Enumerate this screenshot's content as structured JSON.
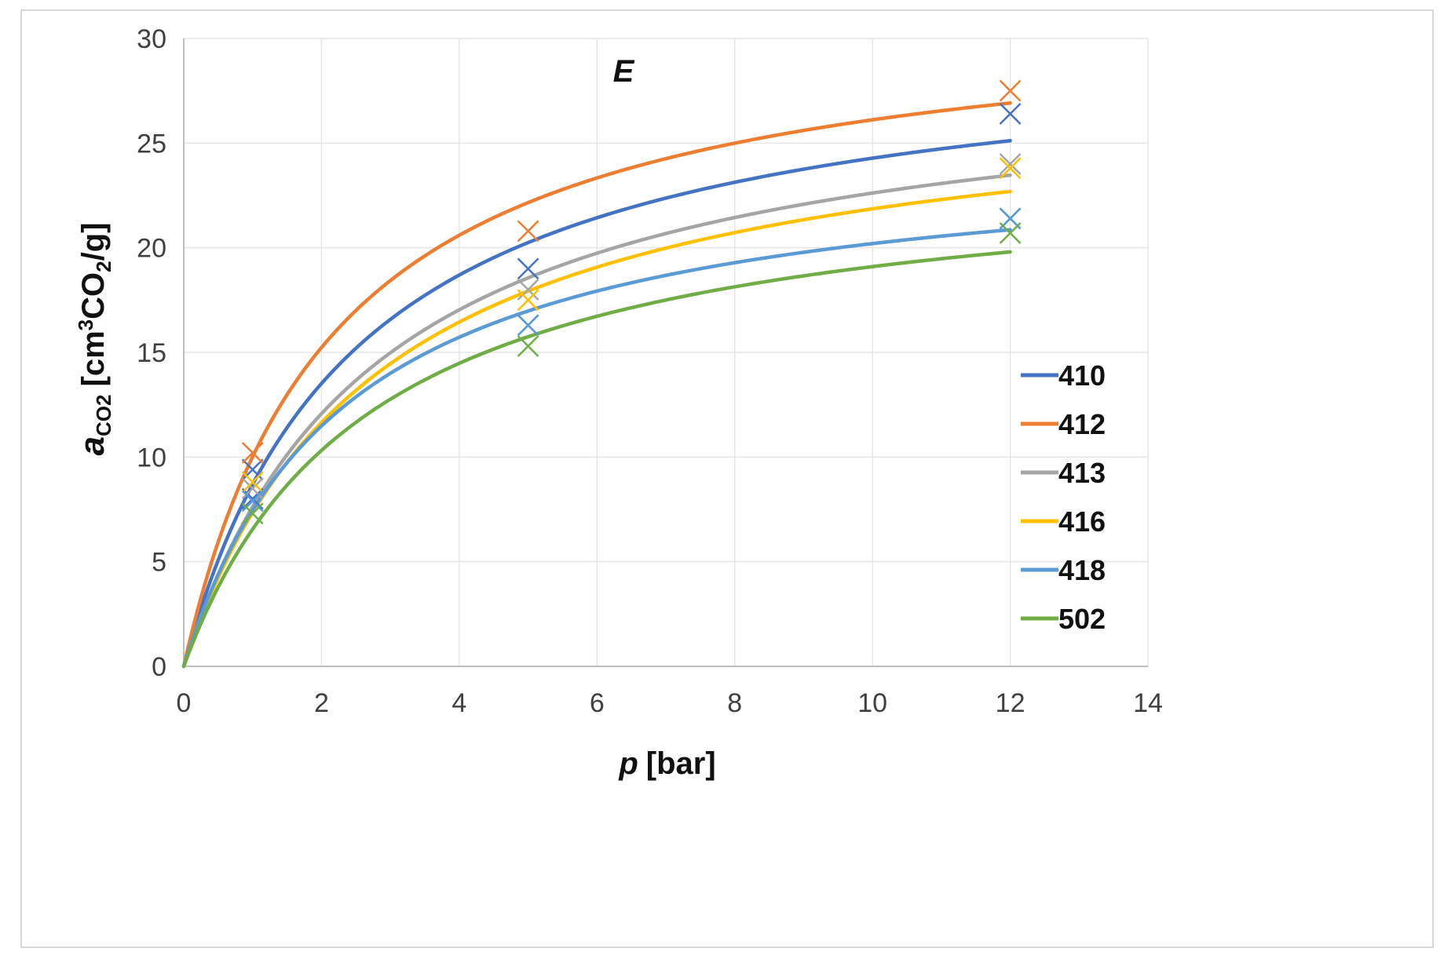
{
  "chart_data": {
    "type": "scatter",
    "panel_label": "E",
    "xlabel": {
      "var": "p",
      "unit": "[bar]"
    },
    "ylabel": {
      "var": "a",
      "sub": "CO2",
      "unit_open": "[cm",
      "sup": "3",
      "unit_mid": "CO",
      "sub2": "2",
      "unit_close": "/g]"
    },
    "xlim": [
      0,
      14
    ],
    "ylim": [
      0,
      30
    ],
    "xticks": [
      0,
      2,
      4,
      6,
      8,
      10,
      12,
      14
    ],
    "yticks": [
      0,
      5,
      10,
      15,
      20,
      25,
      30
    ],
    "grid": true,
    "legend_position": "right",
    "series": [
      {
        "name": "410",
        "color": "#4472C4",
        "fit": {
          "model": "langmuir",
          "qmax": 30.32,
          "b": 0.402
        },
        "points": [
          {
            "x": 1,
            "y": 9.4
          },
          {
            "x": 1,
            "y": 8.0
          },
          {
            "x": 5,
            "y": 19.0
          },
          {
            "x": 5,
            "y": 16.3
          },
          {
            "x": 12,
            "y": 26.4
          },
          {
            "x": 12,
            "y": 21.4
          }
        ]
      },
      {
        "name": "412",
        "color": "#ED7D31",
        "fit": {
          "model": "langmuir",
          "qmax": 31.79,
          "b": 0.46
        },
        "points": [
          {
            "x": 1,
            "y": 10.2
          },
          {
            "x": 5,
            "y": 20.8
          },
          {
            "x": 12,
            "y": 27.5
          }
        ]
      },
      {
        "name": "413",
        "color": "#A5A5A5",
        "fit": {
          "model": "langmuir",
          "qmax": 28.93,
          "b": 0.358
        },
        "points": [
          {
            "x": 1,
            "y": 8.5
          },
          {
            "x": 5,
            "y": 18.0
          },
          {
            "x": 12,
            "y": 24.0
          }
        ]
      },
      {
        "name": "416",
        "color": "#FFC000",
        "fit": {
          "model": "langmuir",
          "qmax": 28.0,
          "b": 0.356
        },
        "points": [
          {
            "x": 1,
            "y": 8.8
          },
          {
            "x": 5,
            "y": 17.5
          },
          {
            "x": 12,
            "y": 23.8
          }
        ]
      },
      {
        "name": "418",
        "color": "#5B9BD5",
        "fit": {
          "model": "langmuir",
          "qmax": 24.93,
          "b": 0.427
        },
        "points": [
          {
            "x": 1,
            "y": 7.9
          },
          {
            "x": 5,
            "y": 16.3
          },
          {
            "x": 12,
            "y": 21.4
          }
        ]
      },
      {
        "name": "502",
        "color": "#70AD47",
        "fit": {
          "model": "langmuir",
          "qmax": 24.26,
          "b": 0.37
        },
        "points": [
          {
            "x": 1,
            "y": 7.3
          },
          {
            "x": 5,
            "y": 15.3
          },
          {
            "x": 12,
            "y": 20.7
          }
        ]
      }
    ]
  }
}
